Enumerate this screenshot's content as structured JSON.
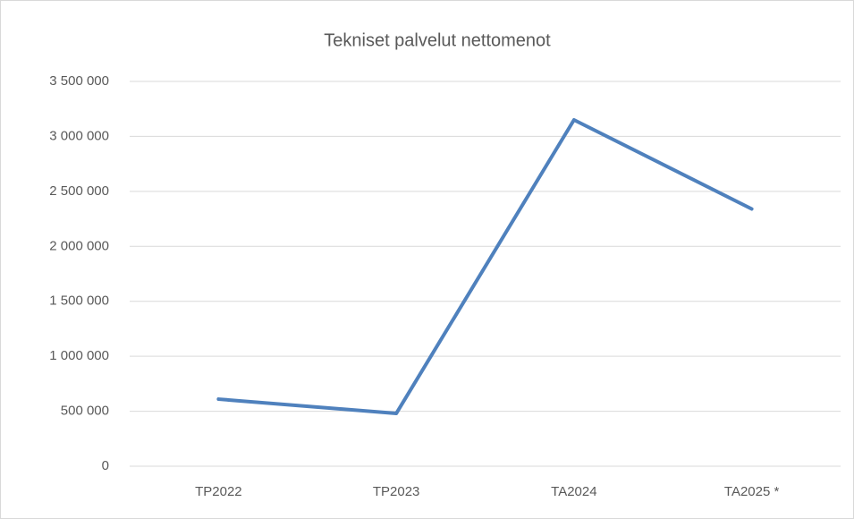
{
  "chart_data": {
    "type": "line",
    "title": "Tekniset palvelut nettomenot",
    "categories": [
      "TP2022",
      "TP2023",
      "TA2024",
      "TA2025 *"
    ],
    "values": [
      610000,
      480000,
      3150000,
      2340000
    ],
    "color": "#4f81bd",
    "ylim": [
      0,
      3500000
    ],
    "yticks": [
      0,
      {
        "value": 500000,
        "label": "500 000"
      },
      {
        "value": 1000000,
        "label": "1 000 000"
      },
      {
        "value": 1500000,
        "label": "1 500 000"
      },
      {
        "value": 2000000,
        "label": "2 000 000"
      },
      {
        "value": 2500000,
        "label": "2 500 000"
      },
      {
        "value": 3000000,
        "label": "3 000 000"
      },
      {
        "value": 3500000,
        "label": "3 500 000"
      }
    ],
    "grid": true
  }
}
